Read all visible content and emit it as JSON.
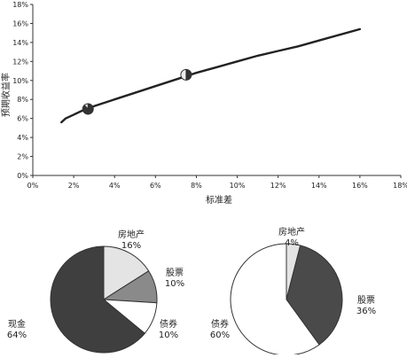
{
  "chart_data": [
    {
      "type": "line",
      "title": "",
      "xlabel": "标准差",
      "ylabel": "预期收益率",
      "xlim": [
        0,
        18
      ],
      "ylim": [
        0,
        18
      ],
      "x_ticks": [
        "0%",
        "2%",
        "4%",
        "6%",
        "8%",
        "10%",
        "12%",
        "14%",
        "16%",
        "18%"
      ],
      "y_ticks": [
        "0%",
        "2%",
        "4%",
        "6%",
        "8%",
        "10%",
        "12%",
        "14%",
        "16%",
        "18%"
      ],
      "grid": false,
      "series": [
        {
          "x": [
            1.4,
            1.6,
            2.0,
            2.5,
            3.0,
            4.0,
            5.0,
            6.0,
            7.0,
            8.0,
            9.0,
            10.0,
            11.0,
            12.0,
            13.0,
            14.0,
            15.0,
            16.0
          ],
          "y": [
            5.6,
            6.0,
            6.4,
            6.9,
            7.3,
            8.0,
            8.7,
            9.4,
            10.1,
            10.8,
            11.4,
            12.0,
            12.6,
            13.1,
            13.6,
            14.2,
            14.8,
            15.4
          ]
        }
      ],
      "markers": [
        {
          "x": 2.7,
          "y": 7.0,
          "pie": [
            0.88,
            0.12
          ]
        },
        {
          "x": 7.5,
          "y": 10.6,
          "pie": [
            0.5,
            0.5
          ]
        }
      ]
    },
    {
      "type": "pie",
      "slices": [
        {
          "label": "房地产",
          "value": 16,
          "display": "16%",
          "color": "#e4e4e4"
        },
        {
          "label": "股票",
          "value": 10,
          "display": "10%",
          "color": "#8a8a8a"
        },
        {
          "label": "债券",
          "value": 10,
          "display": "10%",
          "color": "#ffffff"
        },
        {
          "label": "现金",
          "value": 64,
          "display": "64%",
          "color": "#3f3f3f"
        }
      ]
    },
    {
      "type": "pie",
      "slices": [
        {
          "label": "房地产",
          "value": 4,
          "display": "4%",
          "color": "#e4e4e4"
        },
        {
          "label": "股票",
          "value": 36,
          "display": "36%",
          "color": "#4a4a4a"
        },
        {
          "label": "债券",
          "value": 60,
          "display": "60%",
          "color": "#ffffff"
        }
      ]
    }
  ]
}
